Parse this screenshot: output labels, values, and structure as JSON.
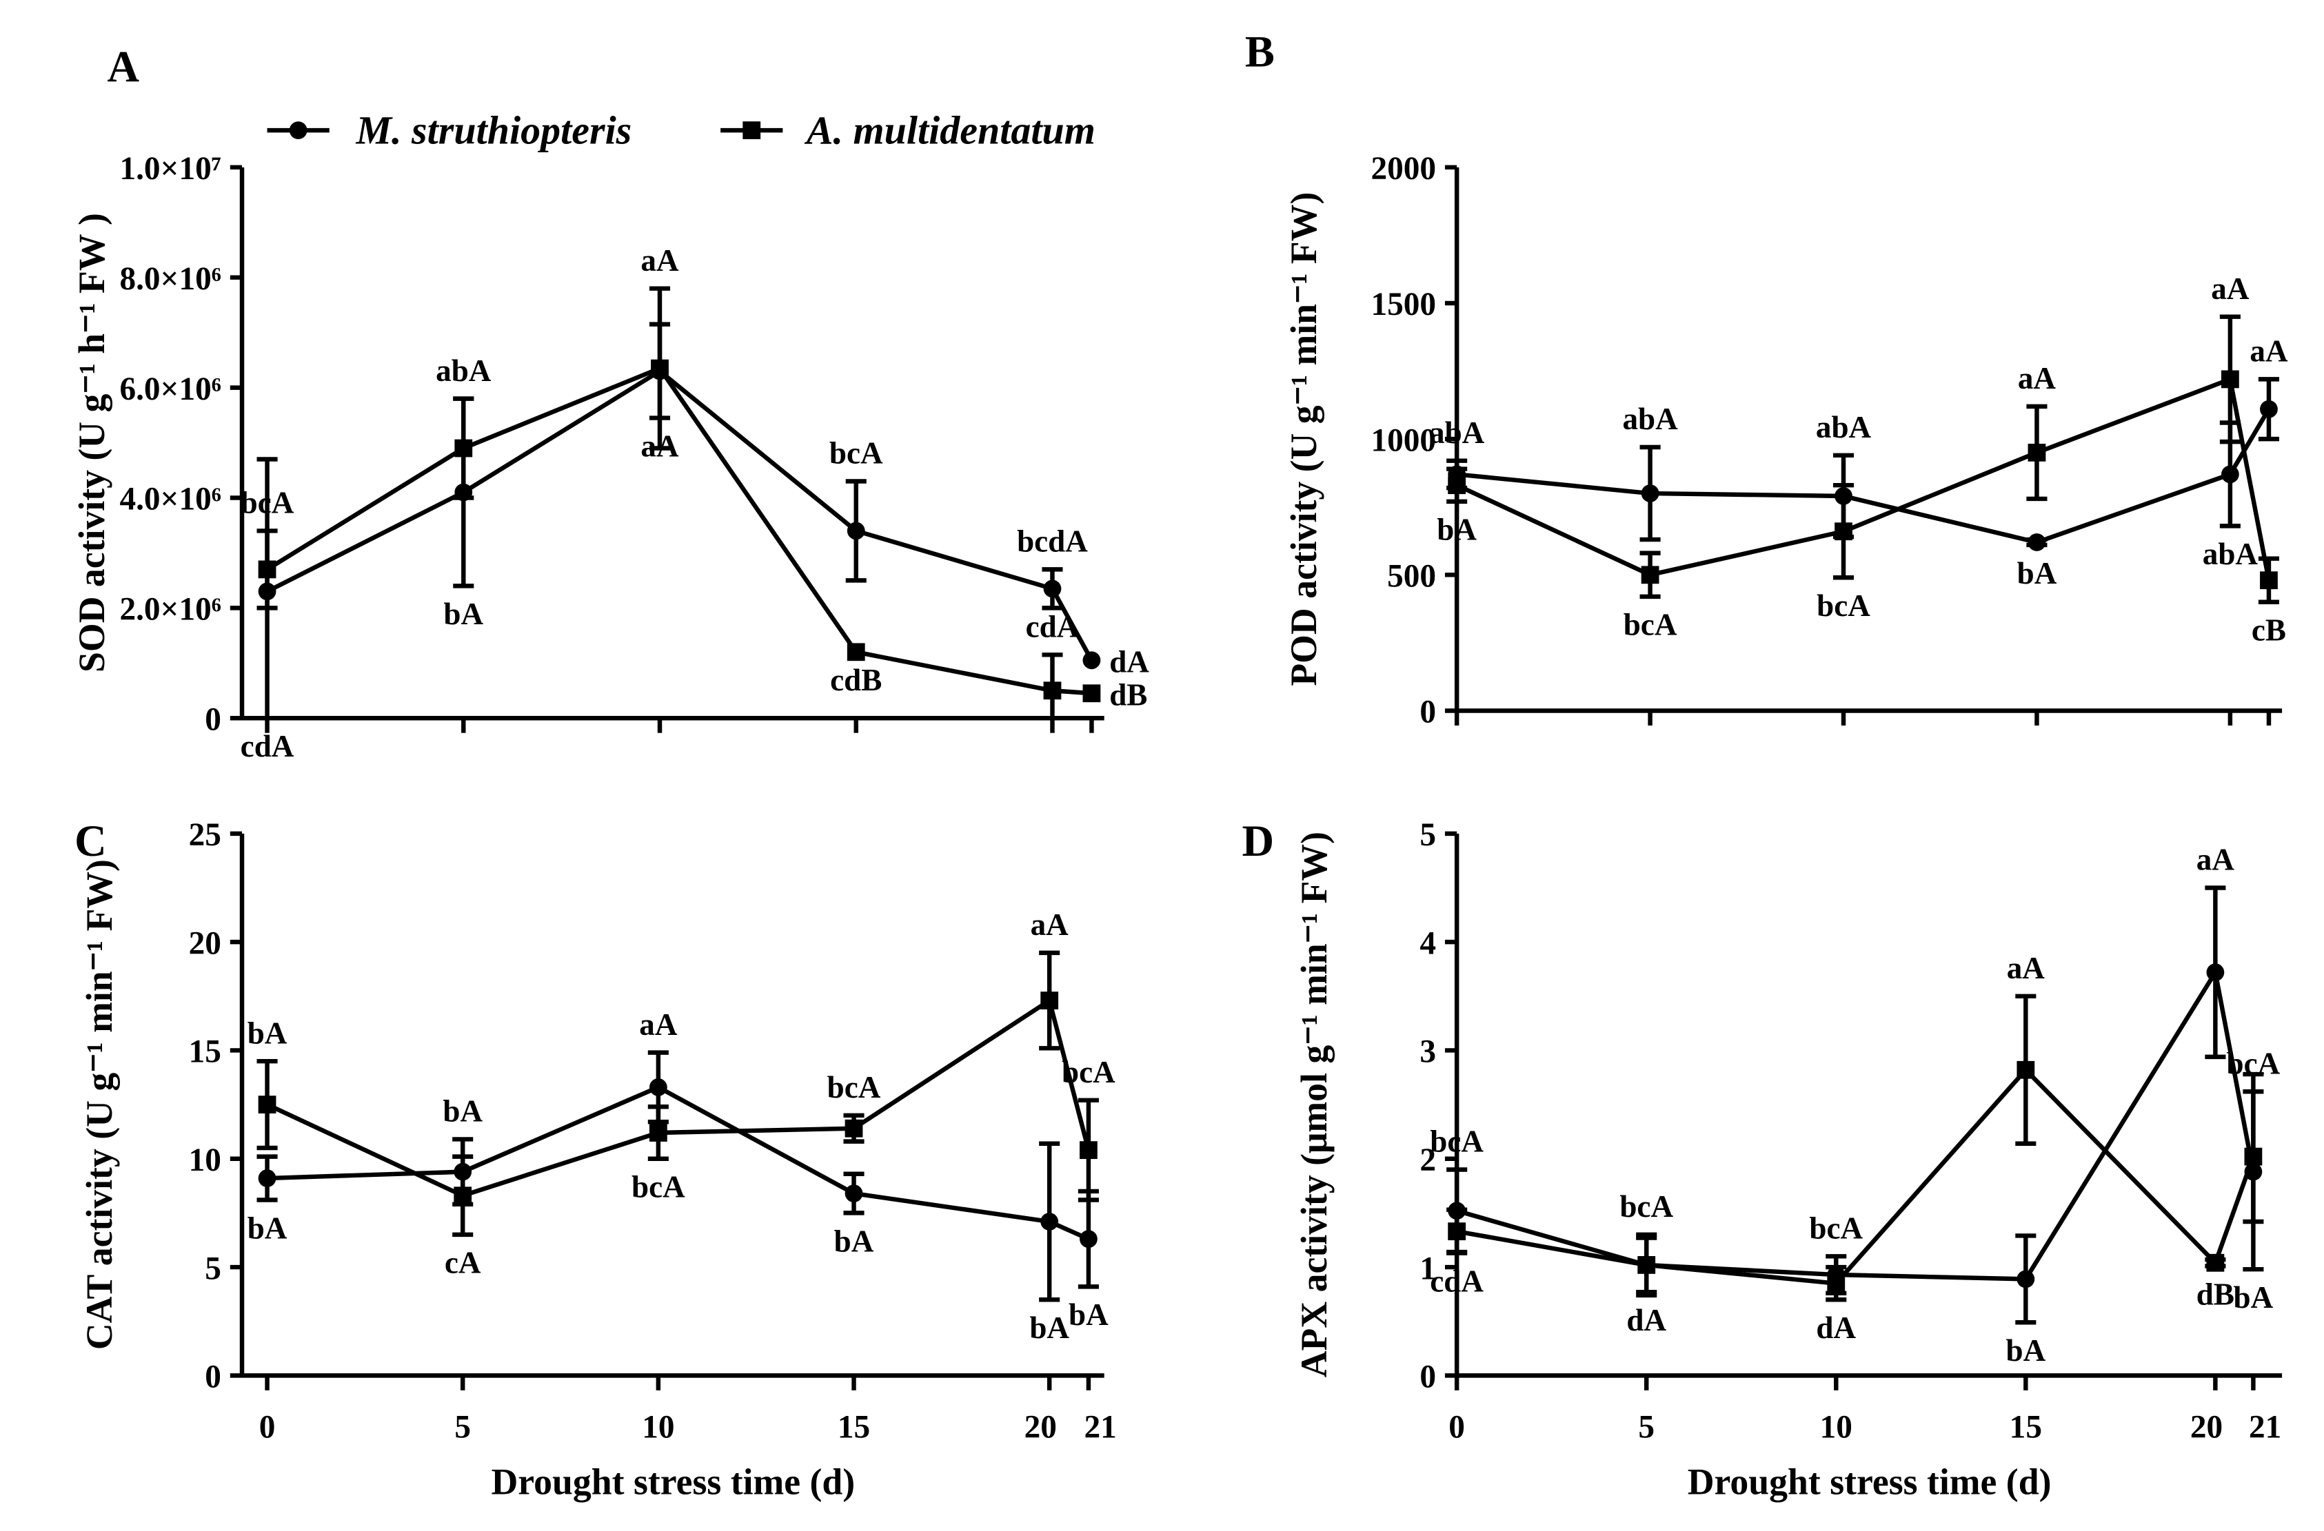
{
  "legend": {
    "series_a": "M. struthiopteris",
    "series_b": "A. multidentatum"
  },
  "colors": {
    "line": "#000000",
    "background": "#ffffff"
  },
  "chart_data": [
    {
      "panel": "A",
      "type": "line",
      "ylabel": "SOD activity (U g⁻¹ h⁻¹ FW )",
      "xlabel": "",
      "x": [
        0,
        5,
        10,
        15,
        20,
        21
      ],
      "xticks": [
        0,
        5,
        10,
        15,
        20
      ],
      "xtick_labels": [],
      "ylim": [
        0,
        10000000
      ],
      "yticks": [
        0,
        2000000,
        4000000,
        6000000,
        8000000,
        10000000
      ],
      "ytick_labels": [
        "0",
        "2.0×10⁶",
        "4.0×10⁶",
        "6.0×10⁶",
        "8.0×10⁶",
        "1.0×10⁷"
      ],
      "series": [
        {
          "name": "M. struthiopteris",
          "marker": "circle",
          "values": [
            2300000,
            4100000,
            6300000,
            3400000,
            2350000,
            1050000
          ],
          "errors": [
            2400000,
            1700000,
            850000,
            900000,
            350000,
            0
          ],
          "labels": [
            "cdA",
            "bA",
            "aA",
            "bcA",
            "bcdA",
            "dA"
          ],
          "label_pos": [
            "below",
            "below",
            "below",
            "above",
            "above",
            "right"
          ]
        },
        {
          "name": "A. multidentatum",
          "marker": "square",
          "values": [
            2700000,
            4900000,
            6350000,
            1200000,
            500000,
            450000
          ],
          "errors": [
            700000,
            900000,
            1450000,
            0,
            650000,
            0
          ],
          "labels": [
            "bcA",
            "abA",
            "aA",
            "cdB",
            "cdA",
            "dB"
          ],
          "label_pos": [
            "above",
            "above",
            "above",
            "below",
            "above",
            "right"
          ]
        }
      ]
    },
    {
      "panel": "B",
      "type": "line",
      "ylabel": "POD activity (U g⁻¹ min⁻¹ FW)",
      "xlabel": "",
      "x": [
        0,
        5,
        10,
        15,
        20,
        21
      ],
      "xticks": [
        0,
        5,
        10,
        15,
        20
      ],
      "xtick_labels": [],
      "ylim": [
        0,
        2000
      ],
      "yticks": [
        0,
        500,
        1000,
        1500,
        2000
      ],
      "ytick_labels": [
        "0",
        "500",
        "1000",
        "1500",
        "2000"
      ],
      "series": [
        {
          "name": "M. struthiopteris",
          "marker": "circle",
          "values": [
            870,
            800,
            790,
            620,
            870,
            1110
          ],
          "errors": [
            50,
            170,
            150,
            10,
            190,
            110
          ],
          "labels": [
            "abA",
            "abA",
            "abA",
            "bA",
            "abA",
            "aA"
          ],
          "label_pos": [
            "above",
            "above",
            "above",
            "below",
            "below",
            "above"
          ]
        },
        {
          "name": "A. multidentatum",
          "marker": "square",
          "values": [
            830,
            500,
            660,
            950,
            1220,
            480
          ],
          "errors": [
            60,
            80,
            170,
            170,
            230,
            80
          ],
          "labels": [
            "bA",
            "bcA",
            "bcA",
            "aA",
            "aA",
            "cB"
          ],
          "label_pos": [
            "below",
            "below",
            "below",
            "above",
            "above",
            "below"
          ]
        }
      ]
    },
    {
      "panel": "C",
      "type": "line",
      "ylabel": "CAT activity (U g⁻¹ min⁻¹ FW)",
      "xlabel": "Drought stress time (d)",
      "x": [
        0,
        5,
        10,
        15,
        20,
        21
      ],
      "xticks": [
        0,
        5,
        10,
        15,
        20,
        21
      ],
      "xtick_labels": [
        "0",
        "5",
        "10",
        "15",
        "20",
        "21"
      ],
      "ylim": [
        0,
        25
      ],
      "yticks": [
        0,
        5,
        10,
        15,
        20,
        25
      ],
      "ytick_labels": [
        "0",
        "5",
        "10",
        "15",
        "20",
        "25"
      ],
      "series": [
        {
          "name": "M. struthiopteris",
          "marker": "circle",
          "values": [
            9.1,
            9.4,
            13.3,
            8.4,
            7.1,
            6.3
          ],
          "errors": [
            1.0,
            1.5,
            1.6,
            0.9,
            3.6,
            2.2
          ],
          "labels": [
            "bA",
            "bA",
            "aA",
            "bA",
            "bA",
            "bA"
          ],
          "label_pos": [
            "below",
            "above",
            "above",
            "below",
            "below",
            "below"
          ]
        },
        {
          "name": "A. multidentatum",
          "marker": "square",
          "values": [
            12.5,
            8.3,
            11.2,
            11.4,
            17.3,
            10.4
          ],
          "errors": [
            2.0,
            1.8,
            1.2,
            0.6,
            2.2,
            2.3
          ],
          "labels": [
            "bA",
            "cA",
            "bcA",
            "bcA",
            "aA",
            "bcA"
          ],
          "label_pos": [
            "above",
            "below",
            "below",
            "above",
            "above",
            "above"
          ]
        }
      ]
    },
    {
      "panel": "D",
      "type": "line",
      "ylabel": "APX activity (μmol g⁻¹ min⁻¹ FW)",
      "xlabel": "Drought stress time (d)",
      "x": [
        0,
        5,
        10,
        15,
        20,
        21
      ],
      "xticks": [
        0,
        5,
        10,
        15,
        20,
        21
      ],
      "xtick_labels": [
        "0",
        "5",
        "10",
        "15",
        "20",
        "21"
      ],
      "ylim": [
        0,
        5
      ],
      "yticks": [
        0,
        1,
        2,
        3,
        4,
        5
      ],
      "ytick_labels": [
        "0",
        "1",
        "2",
        "3",
        "4",
        "5"
      ],
      "series": [
        {
          "name": "M. struthiopteris",
          "marker": "circle",
          "values": [
            1.52,
            1.02,
            0.93,
            0.89,
            3.72,
            1.88
          ],
          "errors": [
            0.38,
            0.28,
            0.17,
            0.4,
            0.78,
            0.9
          ],
          "labels": [
            "bcA",
            "bcA",
            "bcA",
            "bA",
            "aA",
            "bA"
          ],
          "label_pos": [
            "above",
            "above",
            "above",
            "below",
            "above",
            "below"
          ]
        },
        {
          "name": "A. multidentatum",
          "marker": "square",
          "values": [
            1.33,
            1.02,
            0.85,
            2.82,
            1.04,
            2.02
          ],
          "errors": [
            0.2,
            0.25,
            0.15,
            0.68,
            0.03,
            0.6
          ],
          "labels": [
            "cdA",
            "dA",
            "dA",
            "aA",
            "dB",
            "bcA"
          ],
          "label_pos": [
            "below",
            "below",
            "below",
            "above",
            "below",
            "above"
          ]
        }
      ]
    }
  ]
}
